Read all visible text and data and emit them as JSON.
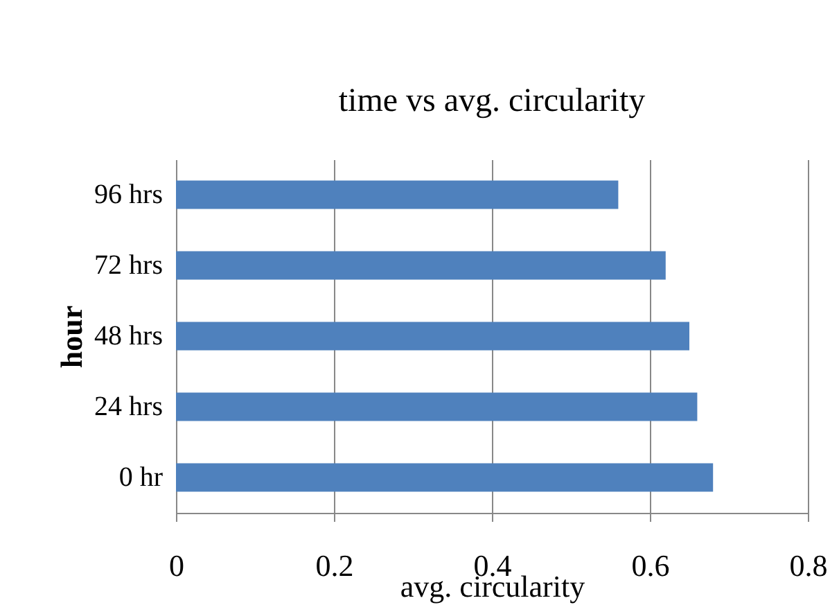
{
  "chart_data": {
    "type": "bar",
    "orientation": "horizontal",
    "title": "time vs avg. circularity",
    "xlabel": "avg. circularity",
    "ylabel": "hour",
    "categories": [
      "96 hrs",
      "72 hrs",
      "48 hrs",
      "24 hrs",
      "0 hr"
    ],
    "values": [
      0.56,
      0.62,
      0.65,
      0.66,
      0.68
    ],
    "color": "#4f81bd",
    "xlim": [
      0,
      0.8
    ],
    "xticks": [
      0,
      0.2,
      0.4,
      0.6,
      0.8
    ],
    "grid": "x"
  }
}
